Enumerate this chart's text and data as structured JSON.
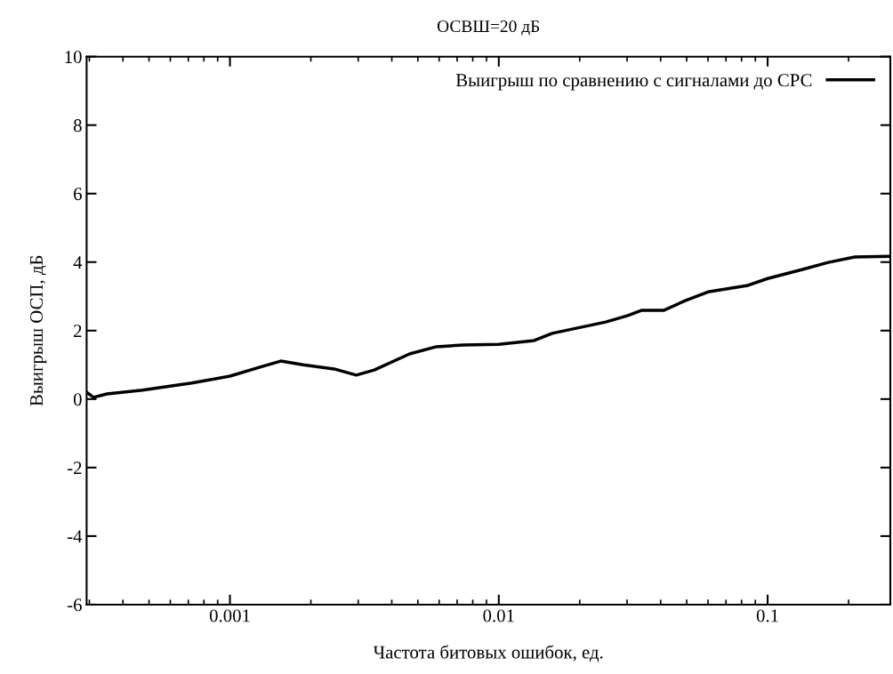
{
  "chart_data": {
    "type": "line",
    "title": "ОСВШ=20 дБ",
    "xlabel": "Частота битовых ошибок, ед.",
    "ylabel": "Выигрыш ОСП, дБ",
    "log": "x",
    "xlim": [
      0.000293,
      0.286
    ],
    "xticks": [
      0.001,
      0.01,
      0.1
    ],
    "ylim": [
      -6,
      10
    ],
    "yticks": [
      -6,
      -4,
      -2,
      0,
      2,
      4,
      6,
      8,
      10
    ],
    "grid": false,
    "legend": "top right",
    "series": [
      {
        "name": "Выигрыш по сравнению с сигналами до СРС",
        "color": "#000000",
        "x": [
          0.000293,
          0.000311,
          0.000349,
          0.000473,
          0.000721,
          0.001,
          0.001327,
          0.001545,
          0.00187,
          0.00244,
          0.00295,
          0.00344,
          0.00466,
          0.00586,
          0.00738,
          0.01,
          0.01355,
          0.0158,
          0.025,
          0.0302,
          0.0339,
          0.041,
          0.0496,
          0.06,
          0.0845,
          0.1,
          0.134,
          0.168,
          0.211,
          0.286
        ],
        "values": [
          0.2,
          0.05,
          0.15,
          0.26,
          0.47,
          0.67,
          0.96,
          1.11,
          1.0,
          0.88,
          0.7,
          0.85,
          1.32,
          1.53,
          1.58,
          1.6,
          1.71,
          1.92,
          2.25,
          2.44,
          2.59,
          2.59,
          2.88,
          3.13,
          3.32,
          3.52,
          3.78,
          3.99,
          4.15,
          4.17
        ]
      }
    ]
  }
}
